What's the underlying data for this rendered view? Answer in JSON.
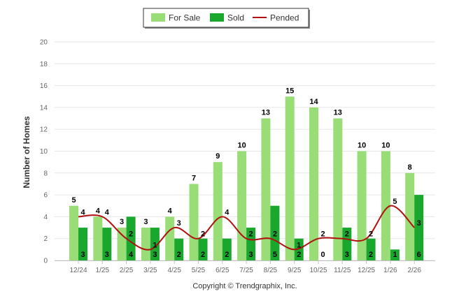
{
  "chart_data": {
    "type": "bar",
    "title": "",
    "xlabel": "",
    "ylabel": "Number of Homes",
    "ylim": [
      0,
      20
    ],
    "yticks": [
      0,
      2,
      4,
      6,
      8,
      10,
      12,
      14,
      16,
      18,
      20
    ],
    "grid": true,
    "legend_position": "top-center",
    "categories": [
      "12/24",
      "1/25",
      "2/25",
      "3/25",
      "4/25",
      "5/25",
      "6/25",
      "7/25",
      "8/25",
      "9/25",
      "10/25",
      "11/25",
      "12/25",
      "1/26",
      "2/26"
    ],
    "series": [
      {
        "name": "For Sale",
        "kind": "bar",
        "color": "#99dd77",
        "values": [
          5,
          4,
          3,
          3,
          4,
          7,
          9,
          10,
          13,
          15,
          14,
          13,
          10,
          10,
          8
        ]
      },
      {
        "name": "Sold",
        "kind": "bar",
        "color": "#1aa72e",
        "values": [
          3,
          3,
          4,
          3,
          2,
          2,
          2,
          3,
          5,
          2,
          0,
          3,
          2,
          1,
          6
        ]
      },
      {
        "name": "Pended",
        "kind": "line",
        "color": "#b01010",
        "values": [
          4,
          4,
          2,
          1,
          3,
          2,
          4,
          2,
          2,
          1,
          2,
          2,
          2,
          5,
          3
        ]
      }
    ]
  },
  "footer": {
    "copyright": "Copyright © Trendgraphix, Inc."
  }
}
